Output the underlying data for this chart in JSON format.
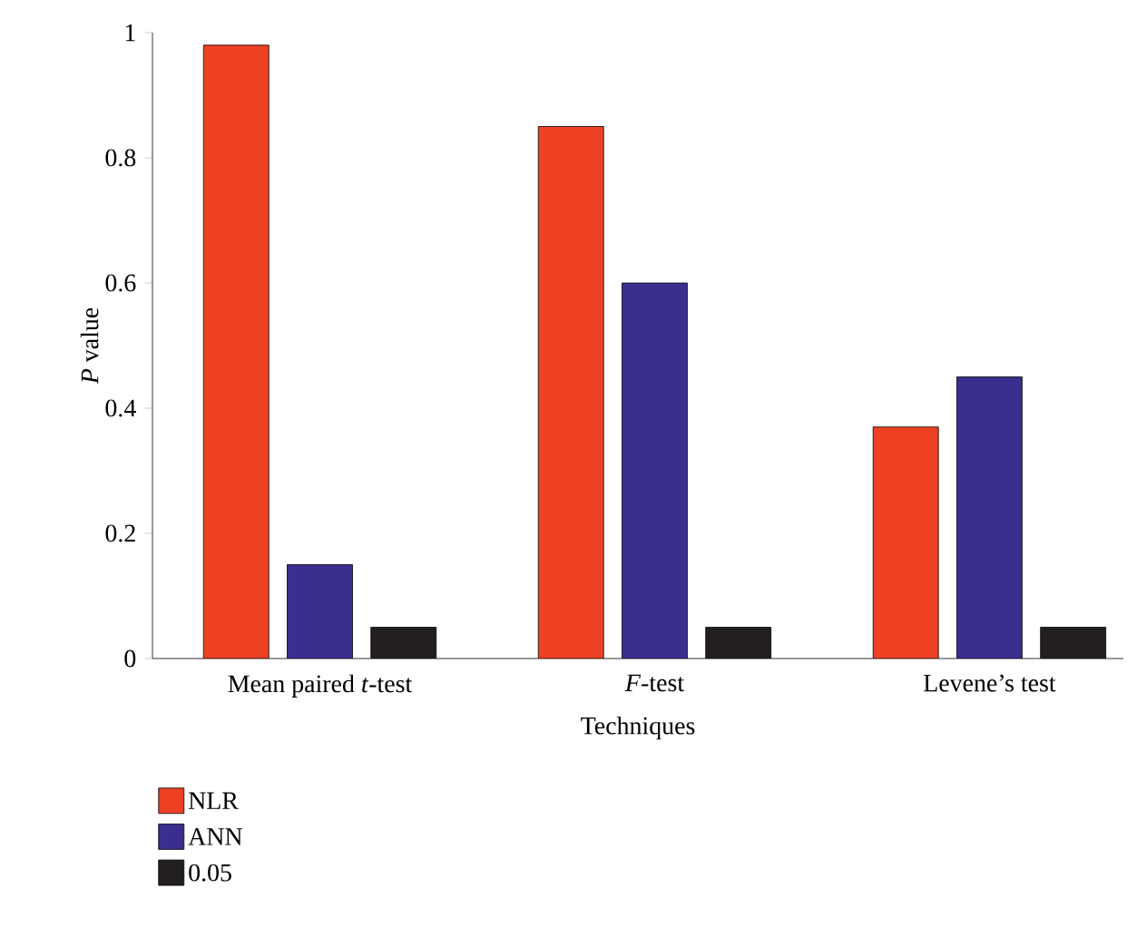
{
  "chart_data": {
    "type": "bar",
    "xlabel": "Techniques",
    "ylabel": "*P* value",
    "categories": [
      "Mean paired *t*-test",
      "*F*-test",
      "Levene’s test"
    ],
    "series": [
      {
        "name": "NLR",
        "color": "#ee4124",
        "values": [
          0.98,
          0.85,
          0.37
        ]
      },
      {
        "name": "ANN",
        "color": "#3a2e8f",
        "values": [
          0.15,
          0.6,
          0.45
        ]
      },
      {
        "name": "0.05",
        "color": "#231f20",
        "values": [
          0.05,
          0.05,
          0.05
        ]
      }
    ],
    "ylim": [
      0,
      1
    ],
    "yticks": [
      0,
      0.2,
      0.4,
      0.6,
      0.8,
      1
    ],
    "grid": false,
    "legend": "bottom left"
  }
}
